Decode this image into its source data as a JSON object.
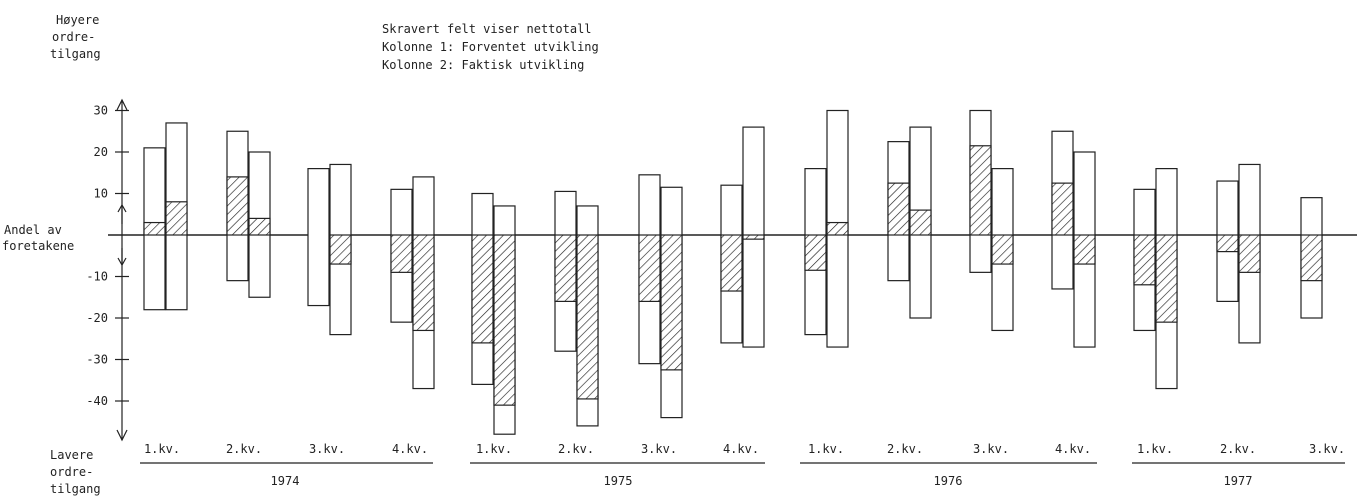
{
  "chart_data": {
    "type": "bar",
    "legend": [
      "Skravert felt viser nettotall",
      "Kolonne 1: Forventet utvikling",
      "Kolonne 2: Faktisk utvikling"
    ],
    "y_label_top": [
      "Høyere",
      "ordre-",
      "tilgang"
    ],
    "y_label_mid": [
      "Andel av",
      "foretakene"
    ],
    "y_label_bottom": [
      "Lavere",
      "ordre-",
      "tilgang"
    ],
    "y_ticks": [
      30,
      20,
      10,
      -10,
      -20,
      -30,
      -40
    ],
    "ylim": [
      -48,
      32
    ],
    "categories": [
      {
        "quarter": "1.kv.",
        "year": "1974"
      },
      {
        "quarter": "2.kv.",
        "year": "1974"
      },
      {
        "quarter": "3.kv.",
        "year": "1974"
      },
      {
        "quarter": "4.kv.",
        "year": "1974"
      },
      {
        "quarter": "1.kv.",
        "year": "1975"
      },
      {
        "quarter": "2.kv.",
        "year": "1975"
      },
      {
        "quarter": "3.kv.",
        "year": "1975"
      },
      {
        "quarter": "4.kv.",
        "year": "1975"
      },
      {
        "quarter": "1.kv.",
        "year": "1976"
      },
      {
        "quarter": "2.kv.",
        "year": "1976"
      },
      {
        "quarter": "3.kv.",
        "year": "1976"
      },
      {
        "quarter": "4.kv.",
        "year": "1976"
      },
      {
        "quarter": "1.kv.",
        "year": "1977"
      },
      {
        "quarter": "2.kv.",
        "year": "1977"
      },
      {
        "quarter": "3.kv.",
        "year": "1977"
      }
    ],
    "years": [
      "1974",
      "1975",
      "1976",
      "1977"
    ],
    "series": [
      {
        "name": "Kolonne 1: Forventet utvikling",
        "high": [
          21,
          25,
          16,
          11,
          10,
          10.5,
          14.5,
          12,
          16,
          22.5,
          30,
          25,
          11,
          13,
          9
        ],
        "low": [
          -18,
          -11,
          -17,
          -21,
          -36,
          -28,
          -31,
          -26,
          -24,
          -11,
          -9,
          -13,
          -23,
          -16,
          -20
        ],
        "net": [
          3,
          14,
          0,
          -9,
          -26,
          -16,
          -16,
          -13.5,
          -8.5,
          12.5,
          21.5,
          12.5,
          -12,
          -4,
          -11
        ]
      },
      {
        "name": "Kolonne 2: Faktisk utvikling",
        "high": [
          27,
          20,
          17,
          14,
          7,
          7,
          11.5,
          26,
          30,
          26,
          16,
          20,
          16,
          17,
          null
        ],
        "low": [
          -18,
          -15,
          -24,
          -37,
          -48,
          -46,
          -44,
          -27,
          -27,
          -20,
          -23,
          -27,
          -37,
          -26,
          null
        ],
        "net": [
          8,
          4,
          -7,
          -23,
          -41,
          -39.5,
          -32.5,
          -1,
          3,
          6,
          -7,
          -7,
          -21,
          -9,
          null
        ]
      }
    ]
  }
}
